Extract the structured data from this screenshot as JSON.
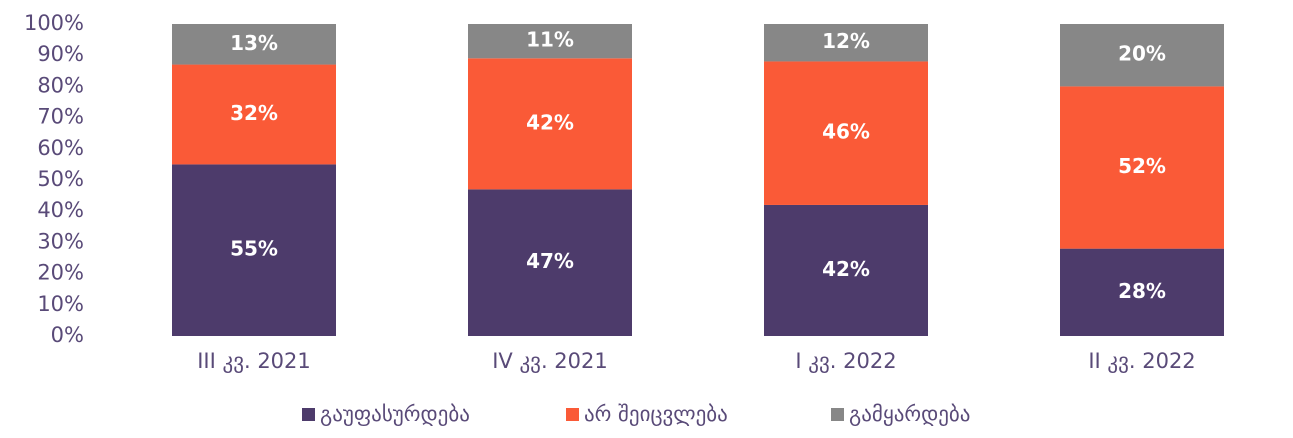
{
  "chart_data": {
    "type": "stacked_bar",
    "categories": [
      "III კვ. 2021",
      "IV კვ. 2021",
      "I კვ. 2022",
      "II კვ. 2022"
    ],
    "series": [
      {
        "name": "გაუფასურდება",
        "color": "#4d3b6b",
        "values": [
          55,
          47,
          42,
          28
        ],
        "value_labels": [
          "55%",
          "47%",
          "42%",
          "28%"
        ]
      },
      {
        "name": "არ შეიცვლება",
        "color": "#fa5a37",
        "values": [
          32,
          42,
          46,
          52
        ],
        "value_labels": [
          "32%",
          "42%",
          "46%",
          "52%"
        ]
      },
      {
        "name": "გამყარდება",
        "color": "#878787",
        "values": [
          13,
          11,
          12,
          20
        ],
        "value_labels": [
          "13%",
          "11%",
          "12%",
          "20%"
        ]
      }
    ],
    "ylim": [
      0,
      100
    ],
    "yticks": [
      {
        "value": 0,
        "label": "0%"
      },
      {
        "value": 10,
        "label": "10%"
      },
      {
        "value": 20,
        "label": "20%"
      },
      {
        "value": 30,
        "label": "30%"
      },
      {
        "value": 40,
        "label": "40%"
      },
      {
        "value": 50,
        "label": "50%"
      },
      {
        "value": 60,
        "label": "60%"
      },
      {
        "value": 70,
        "label": "70%"
      },
      {
        "value": 80,
        "label": "80%"
      },
      {
        "value": 90,
        "label": "90%"
      },
      {
        "value": 100,
        "label": "100%"
      }
    ],
    "legend": "bottom",
    "grid": false
  }
}
